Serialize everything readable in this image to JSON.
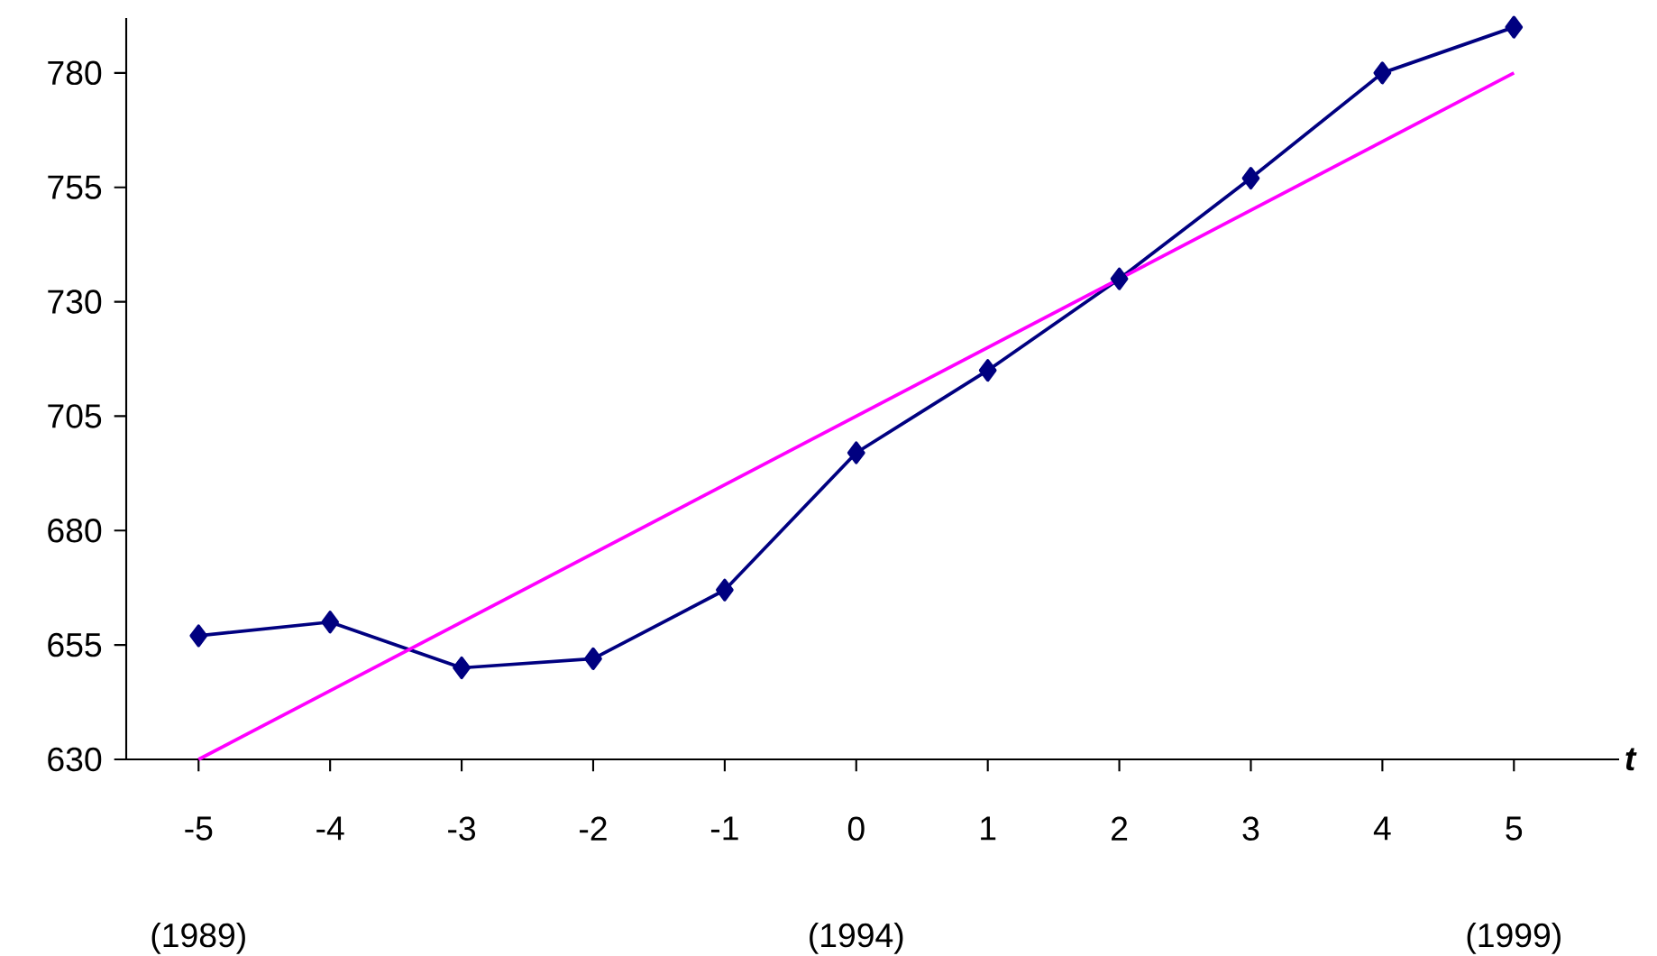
{
  "chart_data": {
    "type": "line",
    "xlabel": "t",
    "x": [
      -5,
      -4,
      -3,
      -2,
      -1,
      0,
      1,
      2,
      3,
      4,
      5
    ],
    "series": [
      {
        "color": "#000080",
        "marker": "diamond",
        "values": [
          657,
          660,
          650,
          652,
          667,
          697,
          715,
          735,
          757,
          780,
          790
        ]
      },
      {
        "color": "#ff00ff",
        "marker": "none",
        "x": [
          -5,
          5
        ],
        "values": [
          630,
          780
        ]
      }
    ],
    "xlim": [
      -5.55,
      5.8
    ],
    "ylim": [
      630,
      792
    ],
    "xticks": [
      -5,
      -4,
      -3,
      -2,
      -1,
      0,
      1,
      2,
      3,
      4,
      5
    ],
    "yticks": [
      630,
      655,
      680,
      705,
      730,
      755,
      780
    ],
    "annotations": [
      "(1989)",
      "(1994)",
      "(1999)"
    ],
    "grid": false
  }
}
